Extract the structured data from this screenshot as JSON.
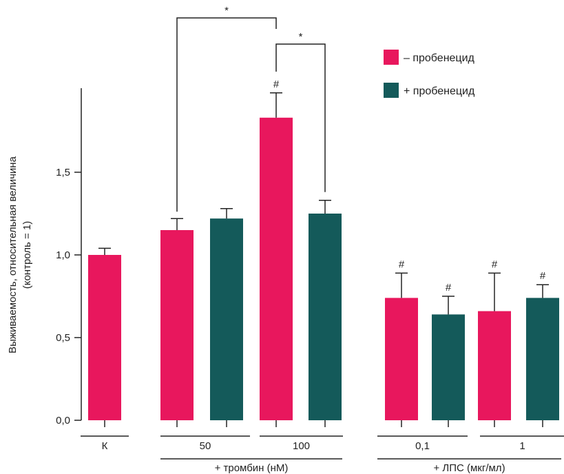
{
  "chart_data": {
    "type": "bar",
    "ylabel_line1": "Выживаемость, относительная величина",
    "ylabel_line2": "(контроль = 1)",
    "ylim": [
      0,
      2.0
    ],
    "yticks": [
      "0,0",
      "0,5",
      "1,0",
      "1,5"
    ],
    "ytick_values": [
      0,
      0.5,
      1.0,
      1.5
    ],
    "colors": {
      "minus": "#e8175d",
      "plus": "#145a5a"
    },
    "legend": [
      {
        "label": "– пробенецид",
        "color": "#e8175d"
      },
      {
        "label": "+ пробенецид",
        "color": "#145a5a"
      }
    ],
    "legend_position": "top-right",
    "bars": [
      {
        "group": "К",
        "series": "minus",
        "value": 1.0,
        "error": 0.04,
        "hash": ""
      },
      {
        "group": "50",
        "series": "minus",
        "value": 1.15,
        "error": 0.07,
        "hash": ""
      },
      {
        "group": "50",
        "series": "plus",
        "value": 1.22,
        "error": 0.06,
        "hash": ""
      },
      {
        "group": "100",
        "series": "minus",
        "value": 1.83,
        "error": 0.15,
        "hash": "#"
      },
      {
        "group": "100",
        "series": "plus",
        "value": 1.25,
        "error": 0.08,
        "hash": ""
      },
      {
        "group": "0,1",
        "series": "minus",
        "value": 0.74,
        "error": 0.15,
        "hash": "#"
      },
      {
        "group": "0,1",
        "series": "plus",
        "value": 0.64,
        "error": 0.11,
        "hash": "#"
      },
      {
        "group": "1",
        "series": "minus",
        "value": 0.66,
        "error": 0.23,
        "hash": "#"
      },
      {
        "group": "1",
        "series": "plus",
        "value": 0.74,
        "error": 0.08,
        "hash": "#"
      }
    ],
    "groups": [
      "К",
      "50",
      "100",
      "0,1",
      "1"
    ],
    "group_labels": [
      {
        "label": "+ тромбин (нМ)",
        "groups": [
          "50",
          "100"
        ]
      },
      {
        "label": "+ ЛПС (мкг/мл)",
        "groups": [
          "0,1",
          "1"
        ]
      }
    ],
    "significance": [
      {
        "from_bar": 1,
        "to_bar": 3,
        "label": "*"
      },
      {
        "from_bar": 3,
        "to_bar": 4,
        "label": "*"
      }
    ]
  }
}
